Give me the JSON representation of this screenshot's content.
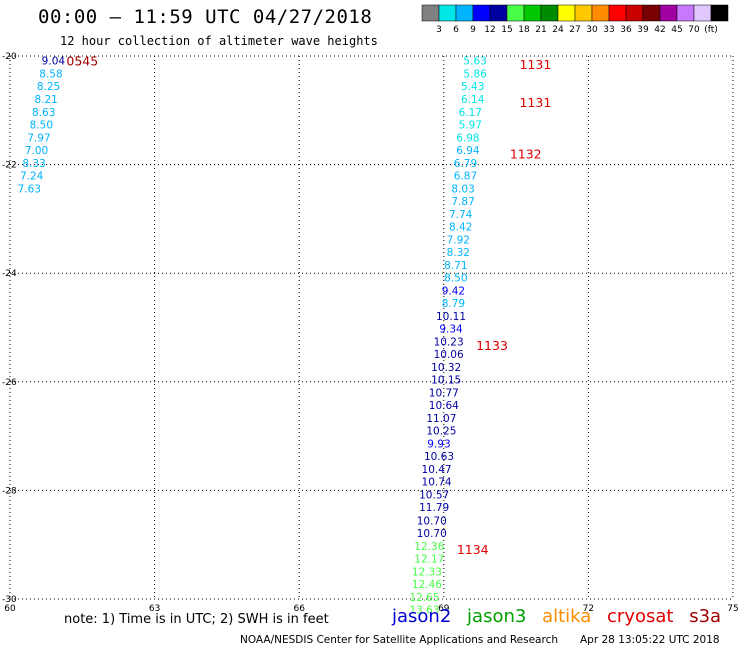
{
  "header": {
    "title": "00:00 – 11:59 UTC 04/27/2018",
    "subtitle": "12 hour collection of altimeter wave heights"
  },
  "color_scale": {
    "colors": [
      "#808080",
      "#00e5e5",
      "#00b4ff",
      "#0000ff",
      "#0000a0",
      "#48ff48",
      "#00c800",
      "#008c00",
      "#ffff00",
      "#ffc800",
      "#ff8c00",
      "#ff0000",
      "#c80000",
      "#780000",
      "#a000a0",
      "#c878ff",
      "#e0c8ff",
      "#000000"
    ],
    "labels": [
      "3",
      "6",
      "9",
      "12",
      "15",
      "18",
      "21",
      "24",
      "27",
      "30",
      "33",
      "36",
      "39",
      "42",
      "45",
      "70",
      "(ft)"
    ]
  },
  "footer": {
    "note": "note: 1) Time is in UTC; 2) SWH is in feet",
    "credit": "NOAA/NESDIS Center for Satellite Applications and Research",
    "timestamp": "Apr 28 13:05:22 UTC 2018"
  },
  "legend": [
    {
      "name": "jason2",
      "color": "#0000d0"
    },
    {
      "name": "jason3",
      "color": "#00a000"
    },
    {
      "name": "altika",
      "color": "#ff8c00"
    },
    {
      "name": "cryosat",
      "color": "#e00000"
    },
    {
      "name": "s3a",
      "color": "#a00000"
    }
  ],
  "chart_data": {
    "type": "scatter",
    "title": "00:00 – 11:59 UTC 04/27/2018",
    "subtitle": "12 hour collection of altimeter wave heights",
    "xlim": [
      60,
      75
    ],
    "ylim": [
      -30,
      -20
    ],
    "x_ticks": [
      60,
      63,
      66,
      69,
      72,
      75
    ],
    "y_ticks": [
      -20,
      -22,
      -24,
      -26,
      -28,
      -30
    ],
    "grid": true,
    "units": "ft",
    "points": [
      {
        "lon": 60.9,
        "lat": -20.08,
        "value": "9.04",
        "color": "#0000a0"
      },
      {
        "lon": 60.85,
        "lat": -20.32,
        "value": "8.58",
        "color": "#00b4ff"
      },
      {
        "lon": 60.8,
        "lat": -20.55,
        "value": "8.25",
        "color": "#00b4ff"
      },
      {
        "lon": 60.75,
        "lat": -20.79,
        "value": "8.21",
        "color": "#00b4ff"
      },
      {
        "lon": 60.7,
        "lat": -21.03,
        "value": "8.63",
        "color": "#00b4ff"
      },
      {
        "lon": 60.65,
        "lat": -21.26,
        "value": "8.50",
        "color": "#00b4ff"
      },
      {
        "lon": 60.6,
        "lat": -21.5,
        "value": "7.97",
        "color": "#00b4ff"
      },
      {
        "lon": 60.55,
        "lat": -21.73,
        "value": "7.00",
        "color": "#00b4ff"
      },
      {
        "lon": 60.5,
        "lat": -21.97,
        "value": "8.33",
        "color": "#00b4ff"
      },
      {
        "lon": 60.45,
        "lat": -22.2,
        "value": "7.24",
        "color": "#00b4ff"
      },
      {
        "lon": 60.4,
        "lat": -22.44,
        "value": "7.63",
        "color": "#00b4ff"
      },
      {
        "lon": 69.65,
        "lat": -20.08,
        "value": "5.63",
        "color": "#00e5e5"
      },
      {
        "lon": 69.65,
        "lat": -20.32,
        "value": "5.86",
        "color": "#00e5e5"
      },
      {
        "lon": 69.6,
        "lat": -20.55,
        "value": "5.43",
        "color": "#00e5e5"
      },
      {
        "lon": 69.6,
        "lat": -20.79,
        "value": "6.14",
        "color": "#00e5e5"
      },
      {
        "lon": 69.55,
        "lat": -21.03,
        "value": "6.17",
        "color": "#00e5e5"
      },
      {
        "lon": 69.55,
        "lat": -21.26,
        "value": "5.97",
        "color": "#00e5e5"
      },
      {
        "lon": 69.5,
        "lat": -21.5,
        "value": "6.98",
        "color": "#00e5e5"
      },
      {
        "lon": 69.5,
        "lat": -21.73,
        "value": "6.94",
        "color": "#00b4ff"
      },
      {
        "lon": 69.45,
        "lat": -21.97,
        "value": "6.79",
        "color": "#00b4ff"
      },
      {
        "lon": 69.45,
        "lat": -22.2,
        "value": "6.87",
        "color": "#00b4ff"
      },
      {
        "lon": 69.4,
        "lat": -22.44,
        "value": "8.03",
        "color": "#00b4ff"
      },
      {
        "lon": 69.4,
        "lat": -22.67,
        "value": "7.87",
        "color": "#00b4ff"
      },
      {
        "lon": 69.35,
        "lat": -22.91,
        "value": "7.74",
        "color": "#00b4ff"
      },
      {
        "lon": 69.35,
        "lat": -23.14,
        "value": "8.42",
        "color": "#00b4ff"
      },
      {
        "lon": 69.3,
        "lat": -23.38,
        "value": "7.92",
        "color": "#00b4ff"
      },
      {
        "lon": 69.3,
        "lat": -23.61,
        "value": "8.32",
        "color": "#00b4ff"
      },
      {
        "lon": 69.25,
        "lat": -23.85,
        "value": "8.71",
        "color": "#00b4ff"
      },
      {
        "lon": 69.25,
        "lat": -24.08,
        "value": "8.50",
        "color": "#00b4ff"
      },
      {
        "lon": 69.2,
        "lat": -24.32,
        "value": "9.42",
        "color": "#0000ff"
      },
      {
        "lon": 69.2,
        "lat": -24.55,
        "value": "8.79",
        "color": "#00b4ff"
      },
      {
        "lon": 69.15,
        "lat": -24.79,
        "value": "10.11",
        "color": "#0000a0"
      },
      {
        "lon": 69.15,
        "lat": -25.02,
        "value": "9.34",
        "color": "#0000ff"
      },
      {
        "lon": 69.1,
        "lat": -25.26,
        "value": "10.23",
        "color": "#0000a0"
      },
      {
        "lon": 69.1,
        "lat": -25.49,
        "value": "10.06",
        "color": "#0000a0"
      },
      {
        "lon": 69.05,
        "lat": -25.73,
        "value": "10.32",
        "color": "#0000a0"
      },
      {
        "lon": 69.05,
        "lat": -25.96,
        "value": "10.15",
        "color": "#0000a0"
      },
      {
        "lon": 69.0,
        "lat": -26.2,
        "value": "10.77",
        "color": "#0000a0"
      },
      {
        "lon": 69.0,
        "lat": -26.43,
        "value": "10.64",
        "color": "#0000a0"
      },
      {
        "lon": 68.95,
        "lat": -26.67,
        "value": "11.07",
        "color": "#0000a0"
      },
      {
        "lon": 68.95,
        "lat": -26.9,
        "value": "10.25",
        "color": "#0000a0"
      },
      {
        "lon": 68.9,
        "lat": -27.14,
        "value": "9.93",
        "color": "#0000ff"
      },
      {
        "lon": 68.9,
        "lat": -27.37,
        "value": "10.63",
        "color": "#0000a0"
      },
      {
        "lon": 68.85,
        "lat": -27.61,
        "value": "10.47",
        "color": "#0000a0"
      },
      {
        "lon": 68.85,
        "lat": -27.84,
        "value": "10.74",
        "color": "#0000a0"
      },
      {
        "lon": 68.8,
        "lat": -28.08,
        "value": "10.57",
        "color": "#0000a0"
      },
      {
        "lon": 68.8,
        "lat": -28.31,
        "value": "11.79",
        "color": "#0000a0"
      },
      {
        "lon": 68.75,
        "lat": -28.55,
        "value": "10.70",
        "color": "#0000a0"
      },
      {
        "lon": 68.75,
        "lat": -28.78,
        "value": "10.70",
        "color": "#0000a0"
      },
      {
        "lon": 68.7,
        "lat": -29.02,
        "value": "12.36",
        "color": "#48ff48"
      },
      {
        "lon": 68.7,
        "lat": -29.25,
        "value": "12.17",
        "color": "#48ff48"
      },
      {
        "lon": 68.65,
        "lat": -29.49,
        "value": "12.33",
        "color": "#48ff48"
      },
      {
        "lon": 68.65,
        "lat": -29.72,
        "value": "12.46",
        "color": "#48ff48"
      },
      {
        "lon": 68.6,
        "lat": -29.96,
        "value": "12.65",
        "color": "#48ff48"
      },
      {
        "lon": 68.6,
        "lat": -30.19,
        "value": "13.63",
        "color": "#48ff48"
      }
    ],
    "time_annotations": [
      {
        "lon": 61.5,
        "lat": -20.08,
        "text": "0545",
        "color": "#a00000"
      },
      {
        "lon": 70.9,
        "lat": -20.15,
        "text": "1131",
        "color": "#e00000"
      },
      {
        "lon": 70.9,
        "lat": -20.85,
        "text": "1131",
        "color": "#e00000"
      },
      {
        "lon": 70.7,
        "lat": -21.8,
        "text": "1132",
        "color": "#e00000"
      },
      {
        "lon": 70.0,
        "lat": -25.32,
        "text": "1133",
        "color": "#e00000"
      },
      {
        "lon": 69.6,
        "lat": -29.08,
        "text": "1134",
        "color": "#e00000"
      }
    ]
  }
}
